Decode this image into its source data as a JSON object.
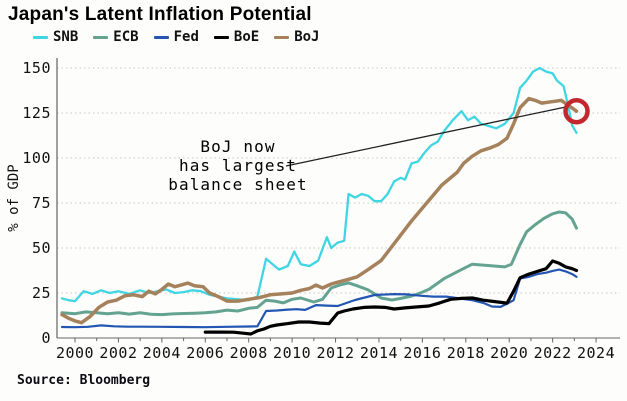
{
  "header": {
    "title": "Japan's Latent Inflation Potential"
  },
  "source": {
    "label": "Source: Bloomberg"
  },
  "annotation": {
    "lines": [
      "BoJ now",
      "has largest",
      "balance sheet"
    ],
    "arrow_color": "#222222",
    "circle_color": "#c1272d",
    "target_series": "BoJ"
  },
  "chart_data": {
    "type": "line",
    "title": "Japan's Latent Inflation Potential",
    "xlabel": "",
    "ylabel": "% of GDP",
    "xlim": [
      1999.2,
      2025.1
    ],
    "ylim": [
      0,
      155
    ],
    "xticks": [
      2000,
      2002,
      2004,
      2006,
      2008,
      2010,
      2012,
      2014,
      2016,
      2018,
      2020,
      2022,
      2024
    ],
    "yticks": [
      0,
      25,
      50,
      75,
      100,
      125,
      150
    ],
    "grid": "horizontal-dotted",
    "legend_position": "top-left",
    "series": [
      {
        "name": "SNB",
        "color": "#3fd5e2",
        "points": [
          [
            1999.4,
            22
          ],
          [
            1999.7,
            21
          ],
          [
            2000.0,
            20.5
          ],
          [
            2000.4,
            26
          ],
          [
            2000.8,
            24.5
          ],
          [
            2001.2,
            26.5
          ],
          [
            2001.6,
            25
          ],
          [
            2002.0,
            26
          ],
          [
            2002.5,
            24.5
          ],
          [
            2003.0,
            26.5
          ],
          [
            2003.4,
            25
          ],
          [
            2003.8,
            26
          ],
          [
            2004.2,
            27
          ],
          [
            2004.6,
            25
          ],
          [
            2005.0,
            25.5
          ],
          [
            2005.4,
            26.5
          ],
          [
            2005.8,
            26
          ],
          [
            2006.2,
            24
          ],
          [
            2006.6,
            23
          ],
          [
            2007.0,
            22
          ],
          [
            2007.5,
            21.5
          ],
          [
            2008.0,
            21
          ],
          [
            2008.4,
            23
          ],
          [
            2008.8,
            44
          ],
          [
            2009.1,
            41
          ],
          [
            2009.4,
            38
          ],
          [
            2009.8,
            40
          ],
          [
            2010.1,
            48
          ],
          [
            2010.4,
            41
          ],
          [
            2010.8,
            40
          ],
          [
            2011.2,
            43
          ],
          [
            2011.6,
            56
          ],
          [
            2011.8,
            50
          ],
          [
            2012.1,
            53
          ],
          [
            2012.4,
            54
          ],
          [
            2012.6,
            80
          ],
          [
            2012.9,
            78
          ],
          [
            2013.2,
            80
          ],
          [
            2013.5,
            79
          ],
          [
            2013.8,
            76
          ],
          [
            2014.1,
            76
          ],
          [
            2014.4,
            80
          ],
          [
            2014.7,
            87
          ],
          [
            2015.0,
            89
          ],
          [
            2015.2,
            88
          ],
          [
            2015.5,
            97
          ],
          [
            2015.8,
            98
          ],
          [
            2016.1,
            103
          ],
          [
            2016.4,
            107
          ],
          [
            2016.7,
            109
          ],
          [
            2017.0,
            115
          ],
          [
            2017.4,
            121
          ],
          [
            2017.8,
            126
          ],
          [
            2018.1,
            121
          ],
          [
            2018.4,
            123
          ],
          [
            2018.7,
            119
          ],
          [
            2019.0,
            118
          ],
          [
            2019.4,
            116.5
          ],
          [
            2019.8,
            119
          ],
          [
            2020.2,
            125
          ],
          [
            2020.5,
            139
          ],
          [
            2020.8,
            143
          ],
          [
            2021.1,
            148
          ],
          [
            2021.4,
            150
          ],
          [
            2021.7,
            148
          ],
          [
            2022.0,
            147
          ],
          [
            2022.2,
            143
          ],
          [
            2022.5,
            140
          ],
          [
            2022.7,
            130
          ],
          [
            2022.9,
            118
          ],
          [
            2023.1,
            114
          ]
        ]
      },
      {
        "name": "ECB",
        "color": "#64a391",
        "points": [
          [
            1999.4,
            14
          ],
          [
            2000.0,
            13.5
          ],
          [
            2000.5,
            14.5
          ],
          [
            2001.0,
            14
          ],
          [
            2001.5,
            13.5
          ],
          [
            2002.0,
            14
          ],
          [
            2002.5,
            13.3
          ],
          [
            2003.0,
            14
          ],
          [
            2003.5,
            13.2
          ],
          [
            2004.0,
            13
          ],
          [
            2004.5,
            13.4
          ],
          [
            2005.0,
            13.6
          ],
          [
            2005.5,
            13.8
          ],
          [
            2006.0,
            14
          ],
          [
            2006.5,
            14.5
          ],
          [
            2007.0,
            15.5
          ],
          [
            2007.5,
            15
          ],
          [
            2008.0,
            16.5
          ],
          [
            2008.4,
            17
          ],
          [
            2008.8,
            21
          ],
          [
            2009.2,
            20.5
          ],
          [
            2009.6,
            19.5
          ],
          [
            2010.0,
            21.5
          ],
          [
            2010.4,
            22.2
          ],
          [
            2011.0,
            20
          ],
          [
            2011.4,
            21.5
          ],
          [
            2011.8,
            27.8
          ],
          [
            2012.2,
            29.5
          ],
          [
            2012.6,
            30.6
          ],
          [
            2013.0,
            29
          ],
          [
            2013.5,
            26.7
          ],
          [
            2014.1,
            22.2
          ],
          [
            2014.6,
            21.1
          ],
          [
            2015.0,
            22
          ],
          [
            2015.5,
            23.3
          ],
          [
            2016.0,
            25.5
          ],
          [
            2016.3,
            27
          ],
          [
            2017.0,
            33
          ],
          [
            2017.8,
            38
          ],
          [
            2018.3,
            41
          ],
          [
            2018.8,
            40.5
          ],
          [
            2019.3,
            40
          ],
          [
            2019.8,
            39.5
          ],
          [
            2020.1,
            41
          ],
          [
            2020.5,
            52
          ],
          [
            2020.8,
            59
          ],
          [
            2021.2,
            63
          ],
          [
            2021.6,
            66.5
          ],
          [
            2022.0,
            69
          ],
          [
            2022.3,
            70
          ],
          [
            2022.6,
            69.5
          ],
          [
            2022.9,
            66
          ],
          [
            2023.1,
            61
          ]
        ]
      },
      {
        "name": "Fed",
        "color": "#2356b2",
        "points": [
          [
            1999.4,
            6.1
          ],
          [
            2000.0,
            6
          ],
          [
            2000.6,
            6.2
          ],
          [
            2001.2,
            7
          ],
          [
            2001.8,
            6.5
          ],
          [
            2002.4,
            6.3
          ],
          [
            2003.0,
            6.3
          ],
          [
            2004.0,
            6.2
          ],
          [
            2005.0,
            6.1
          ],
          [
            2006.0,
            6
          ],
          [
            2007.0,
            6.2
          ],
          [
            2008.0,
            6.4
          ],
          [
            2008.4,
            6.5
          ],
          [
            2008.8,
            15
          ],
          [
            2009.3,
            15.3
          ],
          [
            2009.8,
            15.8
          ],
          [
            2010.2,
            16
          ],
          [
            2010.6,
            15.6
          ],
          [
            2011.1,
            18.3
          ],
          [
            2011.6,
            18
          ],
          [
            2012.1,
            17.8
          ],
          [
            2012.9,
            21.1
          ],
          [
            2013.8,
            23.9
          ],
          [
            2014.7,
            24.4
          ],
          [
            2015.3,
            24.2
          ],
          [
            2015.9,
            23.5
          ],
          [
            2016.5,
            23
          ],
          [
            2017.1,
            23
          ],
          [
            2017.7,
            22
          ],
          [
            2018.3,
            21
          ],
          [
            2018.8,
            19.5
          ],
          [
            2019.2,
            17.5
          ],
          [
            2019.6,
            17.3
          ],
          [
            2019.9,
            19
          ],
          [
            2020.2,
            21
          ],
          [
            2020.5,
            33
          ],
          [
            2020.9,
            34
          ],
          [
            2021.3,
            35.5
          ],
          [
            2021.7,
            36.3
          ],
          [
            2022.0,
            37.3
          ],
          [
            2022.3,
            38
          ],
          [
            2022.6,
            37
          ],
          [
            2022.9,
            35.5
          ],
          [
            2023.1,
            34
          ]
        ]
      },
      {
        "name": "BoE",
        "color": "#000000",
        "points": [
          [
            2006.0,
            3.3
          ],
          [
            2006.8,
            3.3
          ],
          [
            2007.3,
            3.2
          ],
          [
            2007.8,
            2.6
          ],
          [
            2008.1,
            2.2
          ],
          [
            2008.4,
            4
          ],
          [
            2008.7,
            5
          ],
          [
            2009.0,
            6.5
          ],
          [
            2009.3,
            7.2
          ],
          [
            2009.8,
            8
          ],
          [
            2010.3,
            8.9
          ],
          [
            2010.8,
            8.9
          ],
          [
            2011.3,
            8.3
          ],
          [
            2011.7,
            8
          ],
          [
            2012.1,
            13.9
          ],
          [
            2012.4,
            15
          ],
          [
            2012.8,
            16.1
          ],
          [
            2013.3,
            17
          ],
          [
            2013.8,
            17.2
          ],
          [
            2014.3,
            17
          ],
          [
            2014.7,
            16.1
          ],
          [
            2015.2,
            16.7
          ],
          [
            2015.7,
            17.2
          ],
          [
            2016.3,
            17.8
          ],
          [
            2016.8,
            19.5
          ],
          [
            2017.3,
            21.5
          ],
          [
            2017.8,
            22
          ],
          [
            2018.3,
            22.2
          ],
          [
            2018.8,
            21
          ],
          [
            2019.3,
            20.3
          ],
          [
            2019.9,
            19.4
          ],
          [
            2020.2,
            26
          ],
          [
            2020.5,
            33.5
          ],
          [
            2020.9,
            35.5
          ],
          [
            2021.3,
            37
          ],
          [
            2021.7,
            38.5
          ],
          [
            2022.0,
            42.8
          ],
          [
            2022.3,
            41.5
          ],
          [
            2022.6,
            39.5
          ],
          [
            2022.9,
            38.5
          ],
          [
            2023.1,
            37.5
          ]
        ]
      },
      {
        "name": "BoJ",
        "color": "#a5825c",
        "points": [
          [
            1999.4,
            13
          ],
          [
            1999.7,
            11
          ],
          [
            2000.0,
            9.5
          ],
          [
            2000.3,
            8.5
          ],
          [
            2000.7,
            12
          ],
          [
            2001.1,
            17
          ],
          [
            2001.5,
            20
          ],
          [
            2001.9,
            21
          ],
          [
            2002.3,
            23.5
          ],
          [
            2002.7,
            24
          ],
          [
            2003.1,
            23
          ],
          [
            2003.4,
            26
          ],
          [
            2003.7,
            24.5
          ],
          [
            2004.0,
            27
          ],
          [
            2004.3,
            30
          ],
          [
            2004.6,
            28.5
          ],
          [
            2004.9,
            29.5
          ],
          [
            2005.2,
            30.5
          ],
          [
            2005.5,
            29
          ],
          [
            2005.9,
            28.5
          ],
          [
            2006.2,
            25
          ],
          [
            2006.6,
            23
          ],
          [
            2007.0,
            20.5
          ],
          [
            2007.5,
            20.5
          ],
          [
            2008.0,
            21.5
          ],
          [
            2008.5,
            22.5
          ],
          [
            2009.0,
            24
          ],
          [
            2009.5,
            24.5
          ],
          [
            2010.0,
            25
          ],
          [
            2010.4,
            26.5
          ],
          [
            2010.8,
            27.5
          ],
          [
            2011.1,
            29.4
          ],
          [
            2011.4,
            27.8
          ],
          [
            2011.8,
            30
          ],
          [
            2012.1,
            31
          ],
          [
            2012.5,
            32.3
          ],
          [
            2013.0,
            34
          ],
          [
            2013.5,
            38
          ],
          [
            2014.1,
            43
          ],
          [
            2014.8,
            54
          ],
          [
            2015.5,
            65
          ],
          [
            2016.2,
            75
          ],
          [
            2016.9,
            85
          ],
          [
            2017.6,
            92
          ],
          [
            2017.9,
            97
          ],
          [
            2018.3,
            101
          ],
          [
            2018.7,
            104
          ],
          [
            2019.1,
            105.5
          ],
          [
            2019.5,
            107.5
          ],
          [
            2019.9,
            111
          ],
          [
            2020.2,
            119
          ],
          [
            2020.5,
            128
          ],
          [
            2020.9,
            133
          ],
          [
            2021.2,
            132
          ],
          [
            2021.5,
            130.5
          ],
          [
            2021.8,
            131
          ],
          [
            2022.1,
            131.5
          ],
          [
            2022.4,
            132
          ],
          [
            2022.7,
            129.5
          ],
          [
            2023.1,
            126
          ]
        ]
      }
    ]
  }
}
